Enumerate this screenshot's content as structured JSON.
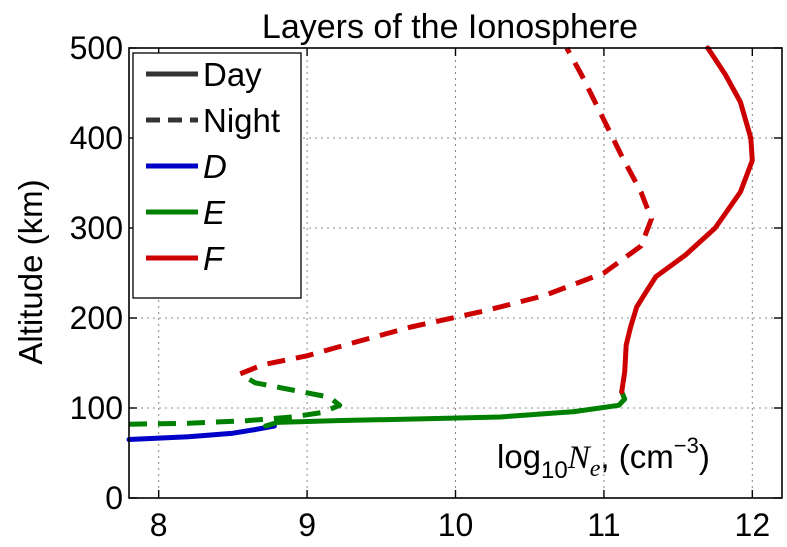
{
  "chart_data": {
    "type": "line",
    "title": "Layers of the Ionosphere",
    "xlabel": "",
    "ylabel": "Altitude (km)",
    "xlim": [
      7.8,
      12.2
    ],
    "ylim": [
      0,
      500
    ],
    "xticks": [
      "8",
      "9",
      "10",
      "11",
      "12"
    ],
    "yticks": [
      "0",
      "100",
      "200",
      "300",
      "400",
      "500"
    ],
    "grid": true,
    "legend_position": "top-left",
    "annotation": {
      "base": "log",
      "sub": "10",
      "var": "N",
      "var_sub": "e",
      "units_pre": ", (cm",
      "units_sup": "−3",
      "units_post": ")"
    },
    "legend": [
      {
        "label": "Day",
        "style": "solid",
        "color": "#333333",
        "italic": false
      },
      {
        "label": "Night",
        "style": "dashed",
        "color": "#333333",
        "italic": false
      },
      {
        "label": "D",
        "style": "solid",
        "color": "#0000c8",
        "italic": true
      },
      {
        "label": "E",
        "style": "solid",
        "color": "#008000",
        "italic": true
      },
      {
        "label": "F",
        "style": "solid",
        "color": "#cc0000",
        "italic": true
      }
    ],
    "series": [
      {
        "layer": "D",
        "time": "Day",
        "color": "#0000c8",
        "dashed": false,
        "points": [
          [
            7.8,
            65
          ],
          [
            8.2,
            68
          ],
          [
            8.5,
            72
          ],
          [
            8.65,
            76
          ],
          [
            8.78,
            80
          ]
        ]
      },
      {
        "layer": "E",
        "time": "Day",
        "color": "#008000",
        "dashed": false,
        "points": [
          [
            8.72,
            80
          ],
          [
            8.8,
            84
          ],
          [
            9.2,
            86
          ],
          [
            9.8,
            88
          ],
          [
            10.3,
            90
          ],
          [
            10.8,
            96
          ],
          [
            11.1,
            103
          ],
          [
            11.14,
            110
          ],
          [
            11.12,
            118
          ]
        ]
      },
      {
        "layer": "F",
        "time": "Day",
        "color": "#cc0000",
        "dashed": false,
        "points": [
          [
            11.12,
            118
          ],
          [
            11.14,
            140
          ],
          [
            11.15,
            170
          ],
          [
            11.18,
            190
          ],
          [
            11.22,
            212
          ],
          [
            11.28,
            228
          ],
          [
            11.35,
            246
          ],
          [
            11.55,
            270
          ],
          [
            11.75,
            300
          ],
          [
            11.92,
            340
          ],
          [
            12.0,
            375
          ],
          [
            11.99,
            400
          ],
          [
            11.92,
            440
          ],
          [
            11.82,
            470
          ],
          [
            11.7,
            500
          ]
        ]
      },
      {
        "layer": "E",
        "time": "Night",
        "color": "#008000",
        "dashed": false,
        "points": [
          [
            7.8,
            82
          ],
          [
            8.2,
            83
          ],
          [
            8.6,
            86
          ],
          [
            8.9,
            90
          ],
          [
            9.1,
            95
          ],
          [
            9.22,
            103
          ],
          [
            9.15,
            112
          ],
          [
            8.9,
            120
          ],
          [
            8.65,
            128
          ],
          [
            8.55,
            138
          ]
        ]
      },
      {
        "layer": "F",
        "time": "Night",
        "color": "#cc0000",
        "dashed": false,
        "points": [
          [
            8.55,
            138
          ],
          [
            8.7,
            148
          ],
          [
            9.0,
            158
          ],
          [
            9.3,
            172
          ],
          [
            9.7,
            190
          ],
          [
            10.2,
            208
          ],
          [
            10.6,
            225
          ],
          [
            11.0,
            250
          ],
          [
            11.25,
            280
          ],
          [
            11.32,
            310
          ],
          [
            11.25,
            340
          ],
          [
            11.12,
            380
          ],
          [
            10.97,
            430
          ],
          [
            10.85,
            470
          ],
          [
            10.75,
            500
          ]
        ]
      }
    ]
  }
}
